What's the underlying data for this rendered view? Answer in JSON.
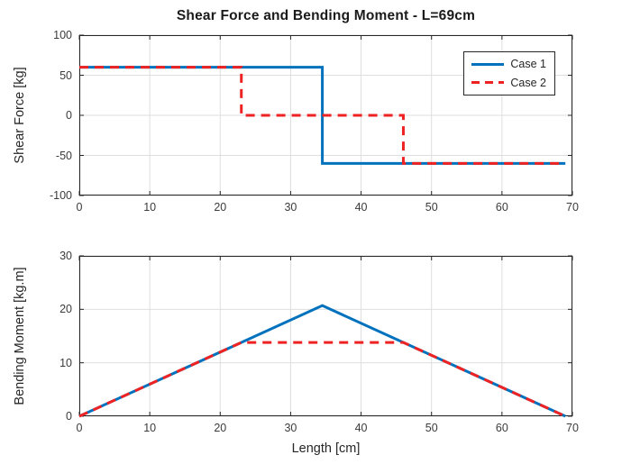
{
  "title": "Shear Force and Bending Moment - L=69cm",
  "colors": {
    "case1": "#0072BD",
    "case2": "#EE2222",
    "grid": "#DEDEDE",
    "axis": "#262626",
    "background": "#FFFFFF"
  },
  "legend": {
    "items": [
      {
        "label": "Case 1",
        "color": "#0072BD",
        "style": "solid"
      },
      {
        "label": "Case 2",
        "color": "#EE2222",
        "style": "dashed"
      }
    ],
    "position": "northeast"
  },
  "chart_data": [
    {
      "type": "line",
      "title": "Shear Force and Bending Moment - L=69cm",
      "xlabel": "",
      "ylabel": "Shear Force [kg]",
      "xlim": [
        0,
        70
      ],
      "ylim": [
        -100,
        100
      ],
      "xticks": [
        0,
        10,
        20,
        30,
        40,
        50,
        60,
        70
      ],
      "yticks": [
        -100,
        -50,
        0,
        50,
        100
      ],
      "grid": true,
      "series": [
        {
          "name": "Case 1",
          "color": "#0072BD",
          "dash": "solid",
          "points": [
            [
              0,
              60
            ],
            [
              34.5,
              60
            ],
            [
              34.5,
              -60
            ],
            [
              69,
              -60
            ]
          ]
        },
        {
          "name": "Case 2",
          "color": "#EE2222",
          "dash": "dashed",
          "points": [
            [
              0,
              60
            ],
            [
              23,
              60
            ],
            [
              23,
              0
            ],
            [
              46,
              0
            ],
            [
              46,
              -60
            ],
            [
              69,
              -60
            ]
          ]
        }
      ]
    },
    {
      "type": "line",
      "title": "",
      "xlabel": "Length [cm]",
      "ylabel": "Bending Moment [kg.m]",
      "xlim": [
        0,
        70
      ],
      "ylim": [
        0,
        30
      ],
      "xticks": [
        0,
        10,
        20,
        30,
        40,
        50,
        60,
        70
      ],
      "yticks": [
        0,
        10,
        20,
        30
      ],
      "grid": true,
      "series": [
        {
          "name": "Case 1",
          "color": "#0072BD",
          "dash": "solid",
          "points": [
            [
              0,
              0
            ],
            [
              34.5,
              20.7
            ],
            [
              69,
              0
            ]
          ]
        },
        {
          "name": "Case 2",
          "color": "#EE2222",
          "dash": "dashed",
          "points": [
            [
              0,
              0
            ],
            [
              23,
              13.8
            ],
            [
              46,
              13.8
            ],
            [
              69,
              0
            ]
          ]
        }
      ]
    }
  ]
}
